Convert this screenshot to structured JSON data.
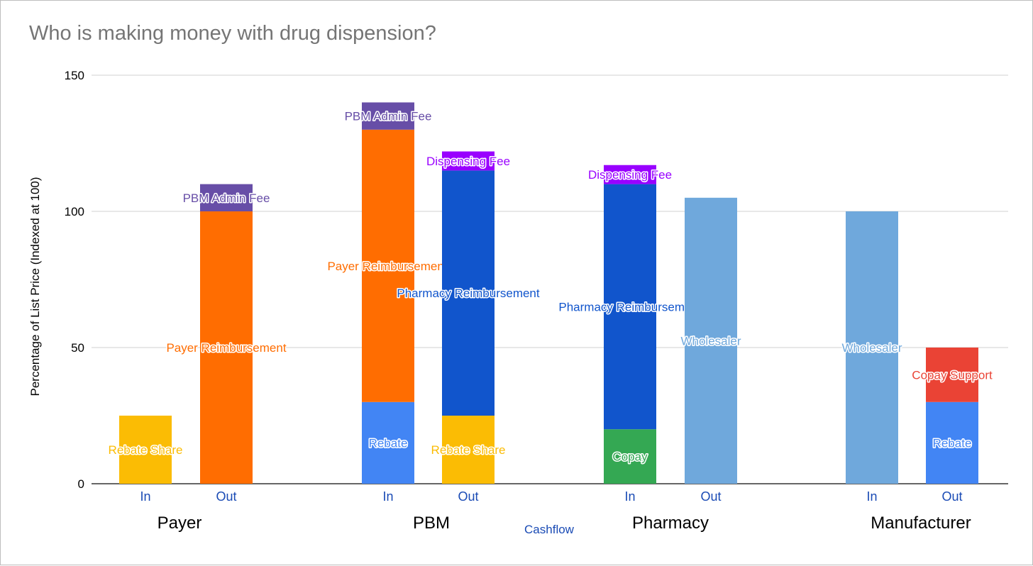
{
  "title": "Who is making money with drug dispension?",
  "chart_data": {
    "type": "bar",
    "stacked": true,
    "title": "Who is making money with drug dispension?",
    "xlabel": "Cashflow",
    "ylabel": "Percentage of List Price (Indexed at 100)",
    "ylim": [
      0,
      150
    ],
    "yticks": [
      "0",
      "50",
      "100",
      "150"
    ],
    "grid": true,
    "groups": [
      {
        "name": "Payer",
        "bars": [
          {
            "label": "In",
            "segments": [
              {
                "name": "Rebate Share",
                "value": 25,
                "color": "#fbbc04"
              }
            ]
          },
          {
            "label": "Out",
            "segments": [
              {
                "name": "Payer Reimbursement",
                "value": 100,
                "color": "#ff6d01"
              },
              {
                "name": "PBM Admin Fee",
                "value": 10,
                "color": "#674ea7"
              }
            ]
          }
        ]
      },
      {
        "name": "PBM",
        "bars": [
          {
            "label": "In",
            "segments": [
              {
                "name": "Rebate",
                "value": 30,
                "color": "#4285f4"
              },
              {
                "name": "Payer Reimbursement",
                "value": 100,
                "color": "#ff6d01"
              },
              {
                "name": "PBM Admin Fee",
                "value": 10,
                "color": "#674ea7"
              }
            ]
          },
          {
            "label": "Out",
            "segments": [
              {
                "name": "Rebate Share",
                "value": 25,
                "color": "#fbbc04"
              },
              {
                "name": "Pharmacy Reimbursement",
                "value": 90,
                "color": "#1155cc"
              },
              {
                "name": "Dispensing Fee",
                "value": 7,
                "color": "#9900ff"
              }
            ]
          }
        ]
      },
      {
        "name": "Pharmacy",
        "bars": [
          {
            "label": "In",
            "segments": [
              {
                "name": "Copay",
                "value": 20,
                "color": "#34a853"
              },
              {
                "name": "Pharmacy Reimbursement",
                "value": 90,
                "color": "#1155cc"
              },
              {
                "name": "Dispensing Fee",
                "value": 7,
                "color": "#9900ff"
              }
            ]
          },
          {
            "label": "Out",
            "segments": [
              {
                "name": "Wholesaler",
                "value": 105,
                "color": "#6fa8dc"
              }
            ]
          }
        ]
      },
      {
        "name": "Manufacturer",
        "bars": [
          {
            "label": "In",
            "segments": [
              {
                "name": "Wholesaler",
                "value": 100,
                "color": "#6fa8dc"
              }
            ]
          },
          {
            "label": "Out",
            "segments": [
              {
                "name": "Rebate",
                "value": 30,
                "color": "#4285f4"
              },
              {
                "name": "Copay Support",
                "value": 20,
                "color": "#ea4335"
              }
            ]
          }
        ]
      }
    ]
  }
}
